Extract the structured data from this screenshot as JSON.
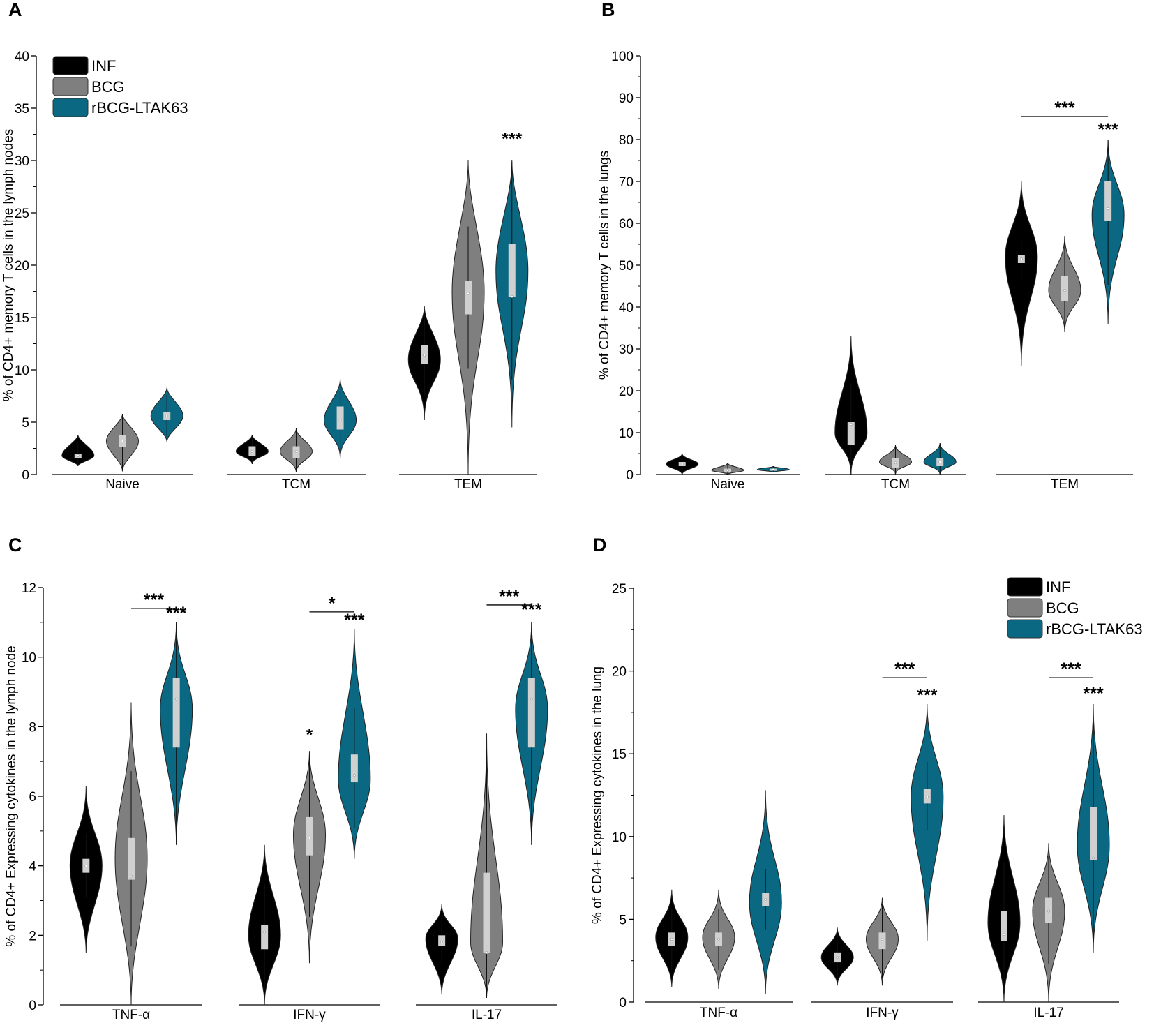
{
  "colors": {
    "INF": "#000000",
    "BCG": "#7f7f7f",
    "rBCG-LTAK63": "#0a6882",
    "box": "#d0d0d0",
    "line": "#000000"
  },
  "legend": [
    "INF",
    "BCG",
    "rBCG-LTAK63"
  ],
  "chart_data": [
    {
      "panel": "A",
      "type": "violin",
      "legend_location": "top-left",
      "ylabel": "% of CD4+ memory T cells in the lymph nodes",
      "ylim": [
        0,
        40
      ],
      "yticks": [
        0,
        5,
        10,
        15,
        20,
        25,
        30,
        35,
        40
      ],
      "categories": [
        "Naive",
        "TCM",
        "TEM"
      ],
      "groups": [
        {
          "category": "Naive",
          "violins": [
            {
              "series": "INF",
              "min": 0.8,
              "max": 3.8,
              "peak": 1.8,
              "q1": 1.6,
              "q3": 2.0,
              "median": 1.8
            },
            {
              "series": "BCG",
              "min": 0.3,
              "max": 5.8,
              "peak": 3.2,
              "q1": 2.6,
              "q3": 3.8,
              "median": 3.2
            },
            {
              "series": "rBCG-LTAK63",
              "min": 3.1,
              "max": 8.3,
              "peak": 5.6,
              "q1": 5.2,
              "q3": 6.0,
              "median": 5.6
            }
          ],
          "sig": []
        },
        {
          "category": "TCM",
          "violins": [
            {
              "series": "INF",
              "min": 1.0,
              "max": 3.8,
              "peak": 2.2,
              "q1": 1.8,
              "q3": 2.7,
              "median": 2.2
            },
            {
              "series": "BCG",
              "min": 0.2,
              "max": 4.4,
              "peak": 2.2,
              "q1": 1.6,
              "q3": 2.7,
              "median": 2.2
            },
            {
              "series": "rBCG-LTAK63",
              "min": 1.6,
              "max": 9.1,
              "peak": 5.2,
              "q1": 4.3,
              "q3": 6.5,
              "median": 5.2
            }
          ],
          "sig": []
        },
        {
          "category": "TEM",
          "violins": [
            {
              "series": "INF",
              "min": 5.2,
              "max": 16.1,
              "peak": 11.0,
              "q1": 10.6,
              "q3": 12.4,
              "median": 11.4
            },
            {
              "series": "BCG",
              "min": 0.0,
              "max": 30.0,
              "peak": 17.5,
              "q1": 15.3,
              "q3": 18.5,
              "median": 17.3
            },
            {
              "series": "rBCG-LTAK63",
              "min": 4.5,
              "max": 30.0,
              "peak": 19.5,
              "q1": 17.0,
              "q3": 22.0,
              "median": 17.0
            }
          ],
          "sig": [
            {
              "text": "***",
              "over": "rBCG-LTAK63",
              "bracket": false,
              "y": 31.5
            }
          ]
        }
      ]
    },
    {
      "panel": "B",
      "type": "violin",
      "ylabel": "% of CD4+ memory T cells in the lungs",
      "ylim": [
        0,
        100
      ],
      "yticks": [
        0,
        10,
        20,
        30,
        40,
        50,
        60,
        70,
        80,
        90,
        100
      ],
      "categories": [
        "Naive",
        "TCM",
        "TEM"
      ],
      "groups": [
        {
          "category": "Naive",
          "violins": [
            {
              "series": "INF",
              "min": 0.0,
              "max": 5.0,
              "peak": 2.5,
              "q1": 2.0,
              "q3": 3.0,
              "median": 2.5
            },
            {
              "series": "BCG",
              "min": 0.0,
              "max": 2.8,
              "peak": 1.0,
              "q1": 0.6,
              "q3": 1.4,
              "median": 1.0
            },
            {
              "series": "rBCG-LTAK63",
              "min": 0.5,
              "max": 2.0,
              "peak": 1.2,
              "q1": 1.0,
              "q3": 1.4,
              "median": 1.2
            }
          ],
          "sig": []
        },
        {
          "category": "TCM",
          "violins": [
            {
              "series": "INF",
              "min": 0.0,
              "max": 33.0,
              "peak": 10.0,
              "q1": 7.0,
              "q3": 12.5,
              "median": 12.0
            },
            {
              "series": "BCG",
              "min": 0.0,
              "max": 7.0,
              "peak": 3.0,
              "q1": 1.5,
              "q3": 4.0,
              "median": 2.8
            },
            {
              "series": "rBCG-LTAK63",
              "min": 0.0,
              "max": 7.5,
              "peak": 3.0,
              "q1": 2.0,
              "q3": 4.0,
              "median": 3.0
            }
          ],
          "sig": []
        },
        {
          "category": "TEM",
          "violins": [
            {
              "series": "INF",
              "min": 26.0,
              "max": 70.0,
              "peak": 52.0,
              "q1": 50.5,
              "q3": 52.5,
              "median": 51.5
            },
            {
              "series": "BCG",
              "min": 34.0,
              "max": 57.0,
              "peak": 44.0,
              "q1": 41.5,
              "q3": 47.5,
              "median": 44.0
            },
            {
              "series": "rBCG-LTAK63",
              "min": 36.0,
              "max": 80.0,
              "peak": 62.0,
              "q1": 60.5,
              "q3": 70.0,
              "median": 63.5
            }
          ],
          "sig": [
            {
              "text": "***",
              "from": "INF",
              "to": "rBCG-LTAK63",
              "bracket": true,
              "y": 85.5
            },
            {
              "text": "***",
              "over": "rBCG-LTAK63",
              "bracket": false,
              "y": 81.0
            }
          ]
        }
      ]
    },
    {
      "panel": "C",
      "type": "violin",
      "ylabel": "% of CD4+ Expressing cytokines in the lymph node",
      "ylim": [
        0,
        12
      ],
      "yticks": [
        0,
        2,
        4,
        6,
        8,
        10,
        12
      ],
      "categories": [
        "TNF-α",
        "IFN-γ",
        "IL-17"
      ],
      "groups": [
        {
          "category": "TNF-α",
          "violins": [
            {
              "series": "INF",
              "min": 1.5,
              "max": 6.3,
              "peak": 4.0,
              "q1": 3.8,
              "q3": 4.2,
              "median": 4.0
            },
            {
              "series": "BCG",
              "min": 0.0,
              "max": 8.7,
              "peak": 4.2,
              "q1": 3.6,
              "q3": 4.8,
              "median": 3.7
            },
            {
              "series": "rBCG-LTAK63",
              "min": 4.6,
              "max": 11.0,
              "peak": 8.5,
              "q1": 7.4,
              "q3": 9.4,
              "median": 8.8
            }
          ],
          "sig": [
            {
              "text": "***",
              "from": "BCG",
              "to": "rBCG-LTAK63",
              "bracket": true,
              "y": 11.4
            },
            {
              "text": "***",
              "over": "rBCG-LTAK63",
              "bracket": false,
              "y": 11.1
            }
          ]
        },
        {
          "category": "IFN-γ",
          "violins": [
            {
              "series": "INF",
              "min": 0.0,
              "max": 4.6,
              "peak": 2.0,
              "q1": 1.6,
              "q3": 2.3,
              "median": 2.1
            },
            {
              "series": "BCG",
              "min": 1.2,
              "max": 7.3,
              "peak": 4.9,
              "q1": 4.3,
              "q3": 5.4,
              "median": 4.8
            },
            {
              "series": "rBCG-LTAK63",
              "min": 4.2,
              "max": 10.8,
              "peak": 6.5,
              "q1": 6.4,
              "q3": 7.2,
              "median": 6.6
            }
          ],
          "sig": [
            {
              "text": "*",
              "from": "BCG",
              "to": "rBCG-LTAK63",
              "bracket": true,
              "y": 11.3
            },
            {
              "text": "***",
              "over": "rBCG-LTAK63",
              "bracket": false,
              "y": 10.9
            },
            {
              "text": "*",
              "over": "BCG",
              "bracket": false,
              "y": 7.6
            }
          ]
        },
        {
          "category": "IL-17",
          "violins": [
            {
              "series": "INF",
              "min": 0.3,
              "max": 2.9,
              "peak": 1.9,
              "q1": 1.7,
              "q3": 2.0,
              "median": 1.8
            },
            {
              "series": "BCG",
              "min": 0.2,
              "max": 7.8,
              "peak": 1.8,
              "q1": 1.5,
              "q3": 3.8,
              "median": 1.5
            },
            {
              "series": "rBCG-LTAK63",
              "min": 4.6,
              "max": 11.0,
              "peak": 8.5,
              "q1": 7.4,
              "q3": 9.4,
              "median": 8.8
            }
          ],
          "sig": [
            {
              "text": "***",
              "from": "BCG",
              "to": "rBCG-LTAK63",
              "bracket": true,
              "y": 11.5
            },
            {
              "text": "***",
              "over": "rBCG-LTAK63",
              "bracket": false,
              "y": 11.2
            }
          ]
        }
      ]
    },
    {
      "panel": "D",
      "type": "violin",
      "legend_location": "top-right",
      "ylabel": "% of CD4+ Expressing cytokines in the lung",
      "ylim": [
        0,
        25
      ],
      "yticks": [
        0,
        5,
        10,
        15,
        20,
        25
      ],
      "categories": [
        "TNF-α",
        "IFN-γ",
        "IL-17"
      ],
      "groups": [
        {
          "category": "TNF-α",
          "violins": [
            {
              "series": "INF",
              "min": 0.9,
              "max": 6.8,
              "peak": 3.9,
              "q1": 3.4,
              "q3": 4.2,
              "median": 3.8
            },
            {
              "series": "BCG",
              "min": 0.8,
              "max": 6.8,
              "peak": 3.9,
              "q1": 3.4,
              "q3": 4.2,
              "median": 3.8
            },
            {
              "series": "rBCG-LTAK63",
              "min": 0.5,
              "max": 12.8,
              "peak": 6.0,
              "q1": 5.8,
              "q3": 6.6,
              "median": 6.2
            }
          ],
          "sig": []
        },
        {
          "category": "IFN-γ",
          "violins": [
            {
              "series": "INF",
              "min": 1.0,
              "max": 4.5,
              "peak": 2.7,
              "q1": 2.4,
              "q3": 3.0,
              "median": 2.7
            },
            {
              "series": "BCG",
              "min": 1.0,
              "max": 6.3,
              "peak": 3.8,
              "q1": 3.2,
              "q3": 4.2,
              "median": 3.8
            },
            {
              "series": "rBCG-LTAK63",
              "min": 3.7,
              "max": 18.0,
              "peak": 12.4,
              "q1": 12.0,
              "q3": 12.9,
              "median": 12.4
            }
          ],
          "sig": [
            {
              "text": "***",
              "from": "BCG",
              "to": "rBCG-LTAK63",
              "bracket": true,
              "y": 19.6
            },
            {
              "text": "***",
              "over": "rBCG-LTAK63",
              "bracket": false,
              "y": 18.2
            }
          ]
        },
        {
          "category": "IL-17",
          "violins": [
            {
              "series": "INF",
              "min": 0.0,
              "max": 11.3,
              "peak": 4.8,
              "q1": 3.7,
              "q3": 5.5,
              "median": 4.1
            },
            {
              "series": "BCG",
              "min": 0.0,
              "max": 9.6,
              "peak": 5.5,
              "q1": 4.8,
              "q3": 6.3,
              "median": 5.5
            },
            {
              "series": "rBCG-LTAK63",
              "min": 3.0,
              "max": 18.0,
              "peak": 9.5,
              "q1": 8.6,
              "q3": 11.8,
              "median": 8.7
            }
          ],
          "sig": [
            {
              "text": "***",
              "from": "BCG",
              "to": "rBCG-LTAK63",
              "bracket": true,
              "y": 19.6
            },
            {
              "text": "***",
              "over": "rBCG-LTAK63",
              "bracket": false,
              "y": 18.3
            }
          ]
        }
      ]
    }
  ]
}
